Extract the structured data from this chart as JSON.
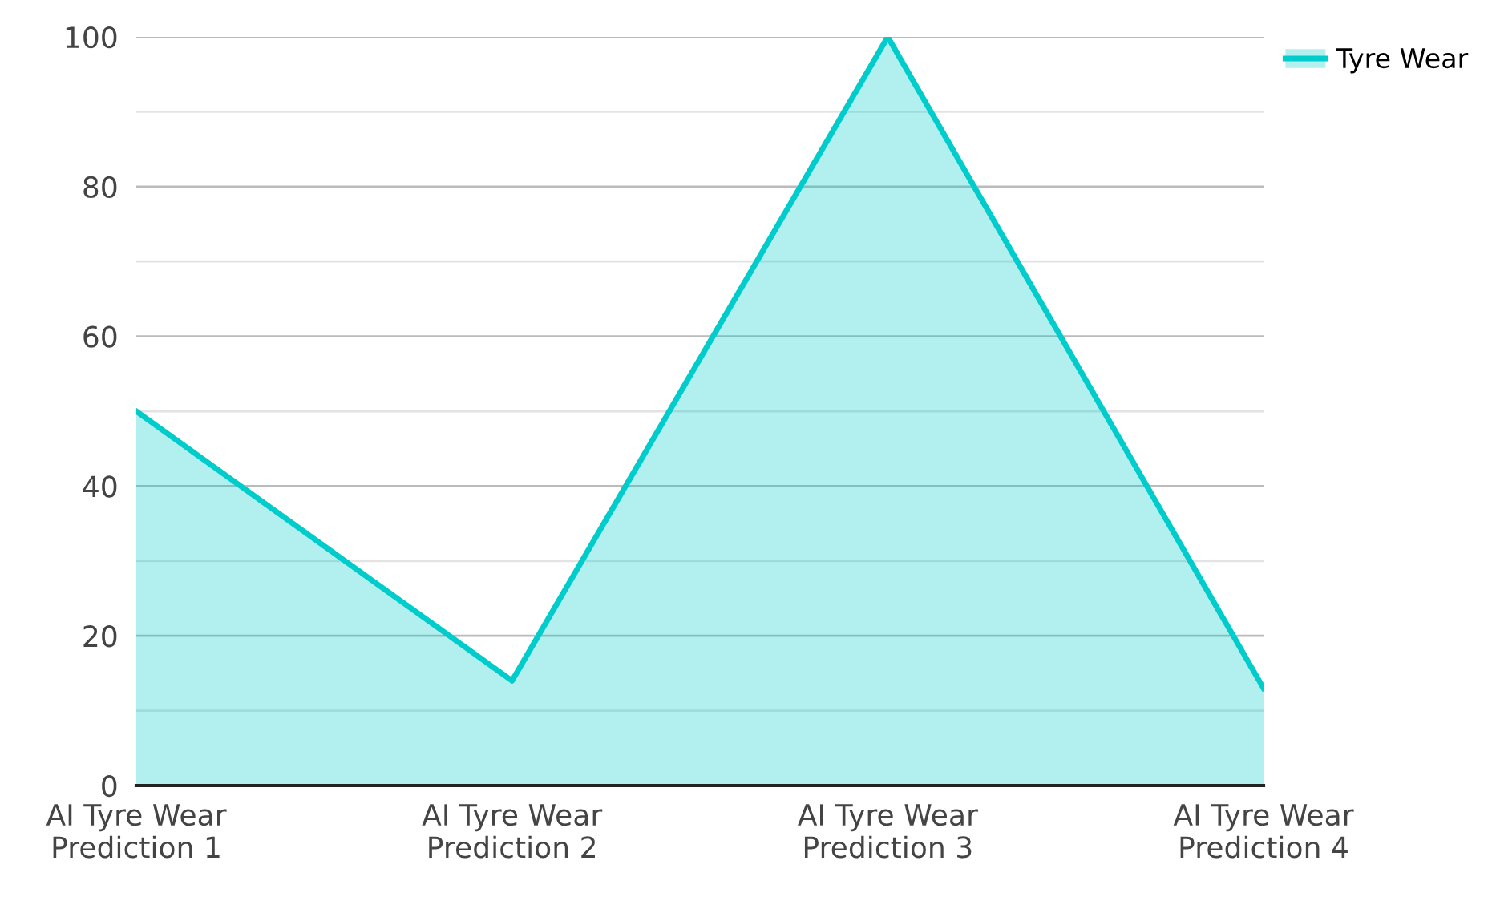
{
  "chart_data": {
    "type": "area",
    "categories": [
      "AI Tyre Wear\nPrediction 1",
      "AI Tyre Wear\nPrediction 2",
      "AI Tyre Wear\nPrediction 3",
      "AI Tyre Wear\nPrediction 4"
    ],
    "series": [
      {
        "name": "Tyre Wear",
        "color": "#00cccc",
        "values": [
          50,
          14,
          100,
          13
        ]
      }
    ],
    "ylim": [
      0,
      100
    ],
    "yticks": [
      0,
      {
        "value": 10,
        "label": null
      },
      20,
      {
        "value": 30,
        "label": null
      },
      40,
      {
        "value": 50,
        "label": null
      },
      60,
      {
        "value": 70,
        "label": null
      },
      80,
      {
        "value": 90,
        "label": null
      },
      100
    ],
    "grid": "y",
    "legend": "top right",
    "marker": "none",
    "line_style": "solid"
  }
}
